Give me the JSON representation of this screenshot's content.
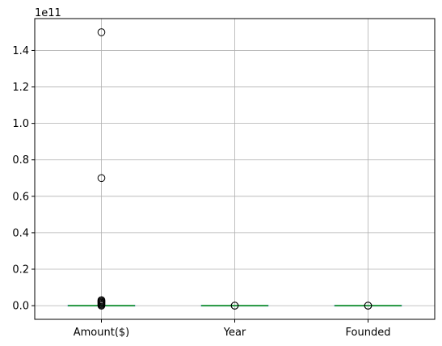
{
  "chart_data": {
    "type": "box",
    "title": "",
    "xlabel": "",
    "ylabel": "",
    "offset_text": "1e11",
    "scale": 100000000000,
    "categories": [
      "Amount($)",
      "Year",
      "Founded"
    ],
    "ylim": [
      -0.075,
      1.575
    ],
    "yticks": [
      0.0,
      0.2,
      0.4,
      0.6,
      0.8,
      1.0,
      1.2,
      1.4
    ],
    "ytick_labels": [
      "0.0",
      "0.2",
      "0.4",
      "0.6",
      "0.8",
      "1.0",
      "1.2",
      "1.4"
    ],
    "grid": true,
    "boxes": [
      {
        "name": "Amount($)",
        "q1": 0.0,
        "median": 0.0,
        "q3": 0.0,
        "whisker_low": 0.0,
        "whisker_high": 0.0,
        "outliers": [
          1.5,
          0.7,
          0.03,
          0.025,
          0.02,
          0.015,
          0.01,
          0.005,
          0.0
        ]
      },
      {
        "name": "Year",
        "q1": 0.0,
        "median": 0.0,
        "q3": 0.0,
        "whisker_low": 0.0,
        "whisker_high": 0.0,
        "outliers": [
          0.0,
          0.0
        ]
      },
      {
        "name": "Founded",
        "q1": 0.0,
        "median": 0.0,
        "q3": 0.0,
        "whisker_low": 0.0,
        "whisker_high": 0.0,
        "outliers": [
          0.0,
          0.0
        ]
      }
    ],
    "colors": {
      "grid": "#b0b0b0",
      "median": "#2ca02c",
      "box": "#1f77b4",
      "outlier": "#000000"
    }
  }
}
